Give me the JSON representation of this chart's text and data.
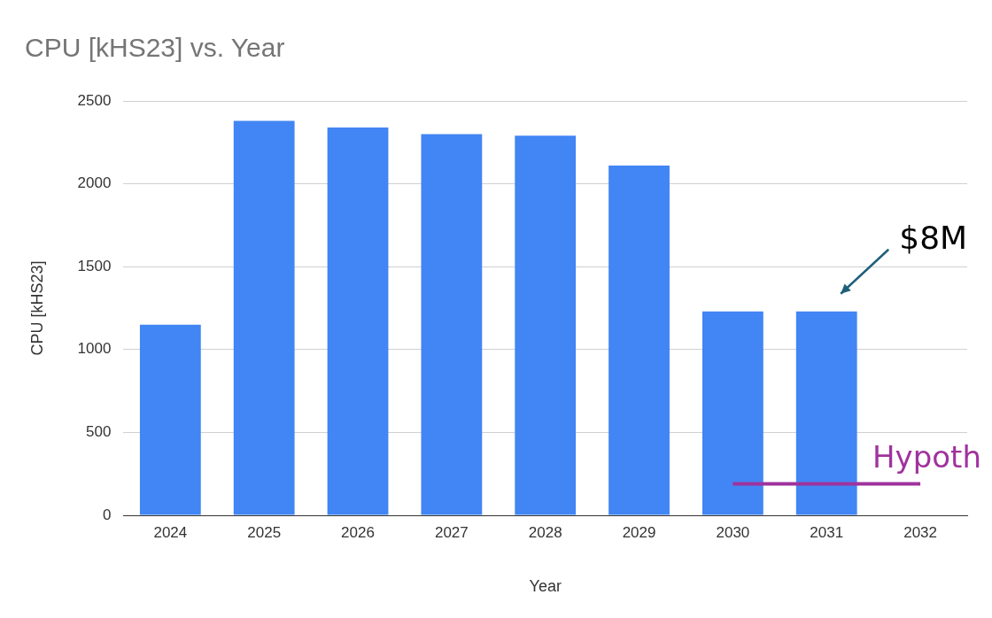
{
  "chart_data": {
    "type": "bar",
    "title": "CPU [kHS23] vs. Year",
    "xlabel": "Year",
    "ylabel": "CPU [kHS23]",
    "categories": [
      "2024",
      "2025",
      "2026",
      "2027",
      "2028",
      "2029",
      "2030",
      "2031",
      "2032"
    ],
    "series": [
      {
        "color": "#4285f4",
        "values": [
          1150,
          2380,
          2340,
          2300,
          2290,
          2110,
          1230,
          1230,
          null
        ]
      },
      {
        "type": "line",
        "name": "Hypoth",
        "color": "#a0329e",
        "values": [
          null,
          null,
          null,
          null,
          null,
          null,
          190,
          190,
          190
        ]
      }
    ],
    "ylim": [
      0,
      2500
    ],
    "yticks": [
      0,
      500,
      1000,
      1500,
      2000,
      2500
    ],
    "grid": "y",
    "legend": false,
    "annotations": [
      {
        "text": "$8M",
        "x": "2031",
        "y": 1230
      }
    ]
  }
}
